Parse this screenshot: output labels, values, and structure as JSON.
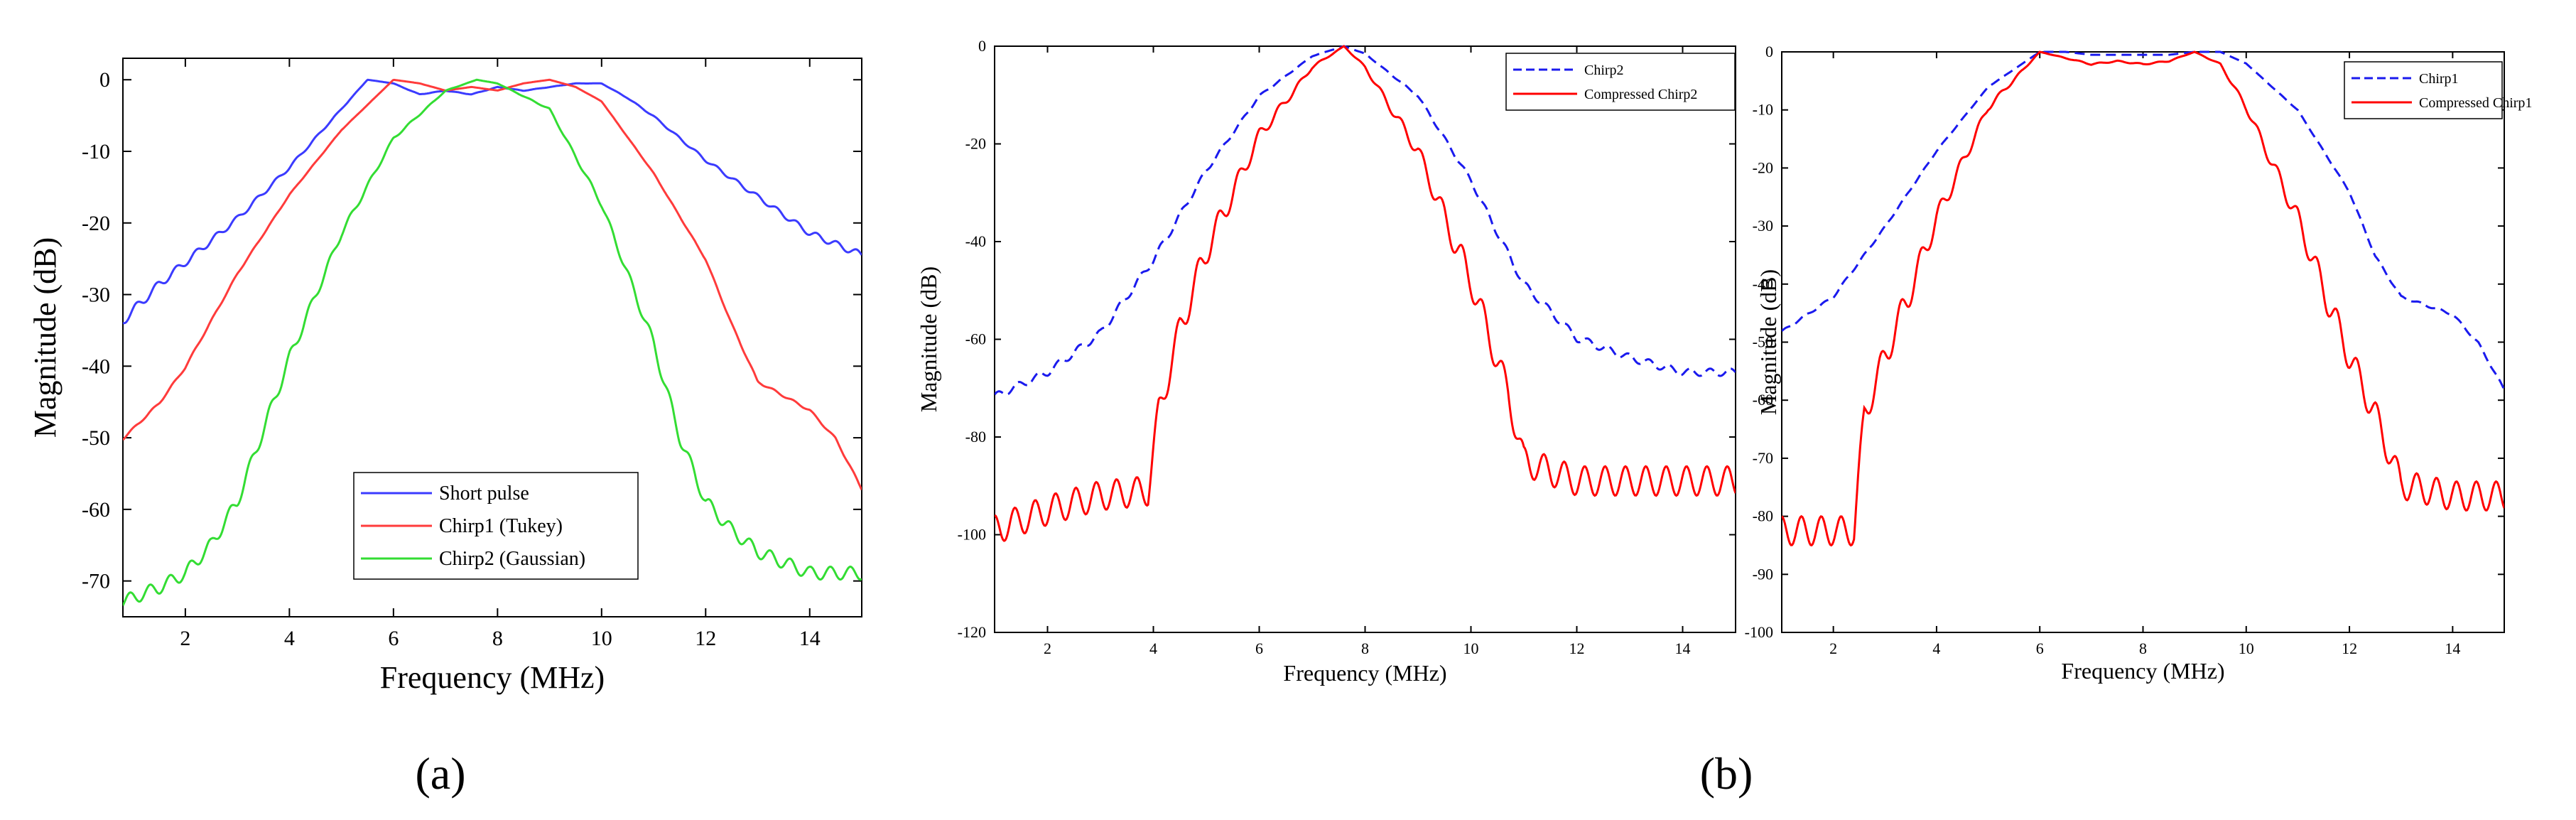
{
  "panel_labels": {
    "a": "(a)",
    "b": "(b)"
  },
  "chart_data": [
    {
      "type": "line",
      "panel": "(a)",
      "xlabel": "Frequency (MHz)",
      "ylabel": "Magnitude (dB)",
      "xlim": [
        0.8,
        15
      ],
      "ylim": [
        -75,
        3
      ],
      "xticks": [
        2,
        4,
        6,
        8,
        10,
        12,
        14
      ],
      "yticks": [
        0,
        -10,
        -20,
        -30,
        -40,
        -50,
        -60,
        -70
      ],
      "legend_position": "bottom-center",
      "series": [
        {
          "name": "Short pulse",
          "color": "#3b3bff",
          "dash": "solid",
          "ripple": 1.6,
          "x": [
            0.8,
            1.5,
            2,
            3,
            4,
            5,
            5.5,
            6,
            6.5,
            7,
            7.5,
            8,
            8.5,
            9,
            9.5,
            10,
            10.5,
            11,
            12,
            13,
            14,
            15
          ],
          "y": [
            -33,
            -28,
            -25,
            -19,
            -12,
            -4,
            0,
            -0.5,
            -2,
            -1.5,
            -2,
            -1,
            -1.5,
            -1,
            -0.5,
            -0.5,
            -2.5,
            -5,
            -11,
            -16,
            -21,
            -24
          ]
        },
        {
          "name": "Chirp1 (Tukey)",
          "color": "#ff3b3b",
          "dash": "solid",
          "ripple": 0.3,
          "x": [
            0.8,
            1.5,
            2,
            3,
            4,
            5,
            6,
            6.5,
            7,
            7.5,
            8,
            8.5,
            9,
            9.5,
            10,
            11,
            12,
            12.5,
            13,
            14,
            14.5,
            15
          ],
          "y": [
            -50,
            -45,
            -40,
            -27,
            -16,
            -7,
            0,
            -0.5,
            -1.5,
            -1,
            -1.5,
            -0.5,
            0,
            -1,
            -3,
            -13,
            -25,
            -34,
            -42,
            -46,
            -50,
            -57
          ]
        },
        {
          "name": "Chirp2 (Gaussian)",
          "color": "#33dd33",
          "dash": "solid",
          "ripple": 1.8,
          "x": [
            0.8,
            1.5,
            2,
            2.5,
            3,
            3.5,
            4,
            5,
            6,
            7,
            7.6,
            8,
            9,
            10,
            11,
            11.5,
            12,
            12.5,
            13,
            14,
            15
          ],
          "y": [
            -72,
            -70,
            -68,
            -64,
            -58,
            -48,
            -38,
            -21,
            -8,
            -1.5,
            0,
            -0.5,
            -4,
            -17,
            -36,
            -49,
            -58,
            -62,
            -65,
            -68,
            -68
          ]
        }
      ]
    },
    {
      "type": "line",
      "panel": "(b)",
      "xlabel": "Frequency (MHz)",
      "ylabel": "Magnitude (dB)",
      "xlim": [
        1,
        15
      ],
      "ylim": [
        -120,
        0
      ],
      "xticks": [
        2,
        4,
        6,
        8,
        10,
        12,
        14
      ],
      "yticks": [
        0,
        -20,
        -40,
        -60,
        -80,
        -100,
        -120
      ],
      "legend_position": "top-right",
      "series": [
        {
          "name": "Chirp2",
          "color": "#1a1aee",
          "dash": "dashed",
          "ripple": 1.5,
          "x": [
            1,
            2,
            3,
            4,
            5,
            6,
            7,
            7.6,
            8,
            9,
            10,
            11,
            12,
            13,
            14,
            15
          ],
          "y": [
            -71,
            -66,
            -58,
            -43,
            -25,
            -10,
            -2,
            0,
            -1.5,
            -10,
            -27,
            -48,
            -59,
            -63,
            -66,
            -66
          ]
        },
        {
          "name": "Compressed Chirp2",
          "color": "#ff0000",
          "dash": "solid",
          "ripple": 6,
          "x": [
            1,
            2,
            3,
            3.9,
            4.1,
            4.5,
            5,
            6,
            7,
            7.6,
            8,
            9,
            10,
            10.7,
            11,
            12,
            13,
            14,
            15
          ],
          "y": [
            -96,
            -92,
            -89,
            -88,
            -72,
            -55,
            -39,
            -17,
            -4,
            0,
            -4,
            -20,
            -45,
            -68,
            -82,
            -86,
            -86,
            -86,
            -86
          ]
        }
      ]
    },
    {
      "type": "line",
      "panel": "(b)",
      "xlabel": "Frequency (MHz)",
      "ylabel": "Magnitude (dB)",
      "xlim": [
        1,
        15
      ],
      "ylim": [
        -100,
        0
      ],
      "xticks": [
        2,
        4,
        6,
        8,
        10,
        12,
        14
      ],
      "yticks": [
        0,
        -10,
        -20,
        -30,
        -40,
        -50,
        -60,
        -70,
        -80,
        -90,
        -100
      ],
      "legend_position": "top-right",
      "series": [
        {
          "name": "Chirp1",
          "color": "#1a1aee",
          "dash": "dashed",
          "ripple": 0.4,
          "x": [
            1,
            2,
            3,
            4,
            5,
            6,
            6.5,
            7,
            7.5,
            8,
            8.5,
            9,
            9.5,
            10,
            11,
            12,
            12.5,
            13,
            14,
            14.5,
            15
          ],
          "y": [
            -48,
            -42,
            -30,
            -17,
            -6,
            0,
            0,
            -0.5,
            -0.5,
            -0.5,
            -0.5,
            0,
            0,
            -2,
            -10,
            -24,
            -35,
            -42,
            -45,
            -50,
            -58
          ]
        },
        {
          "name": "Compressed Chirp1",
          "color": "#ff0000",
          "dash": "solid",
          "ripple": 5,
          "x": [
            1,
            2,
            2.4,
            2.6,
            3,
            4,
            5,
            6,
            6.5,
            7,
            7.5,
            8,
            8.5,
            9,
            9.5,
            10,
            11,
            12,
            12.5,
            13,
            14,
            15
          ],
          "y": [
            -80,
            -80,
            -80,
            -60,
            -50,
            -27,
            -9,
            0,
            -1,
            -2,
            -1.5,
            -2,
            -1.5,
            0,
            -2,
            -9,
            -27,
            -50,
            -60,
            -72,
            -74,
            -74
          ]
        }
      ]
    }
  ]
}
